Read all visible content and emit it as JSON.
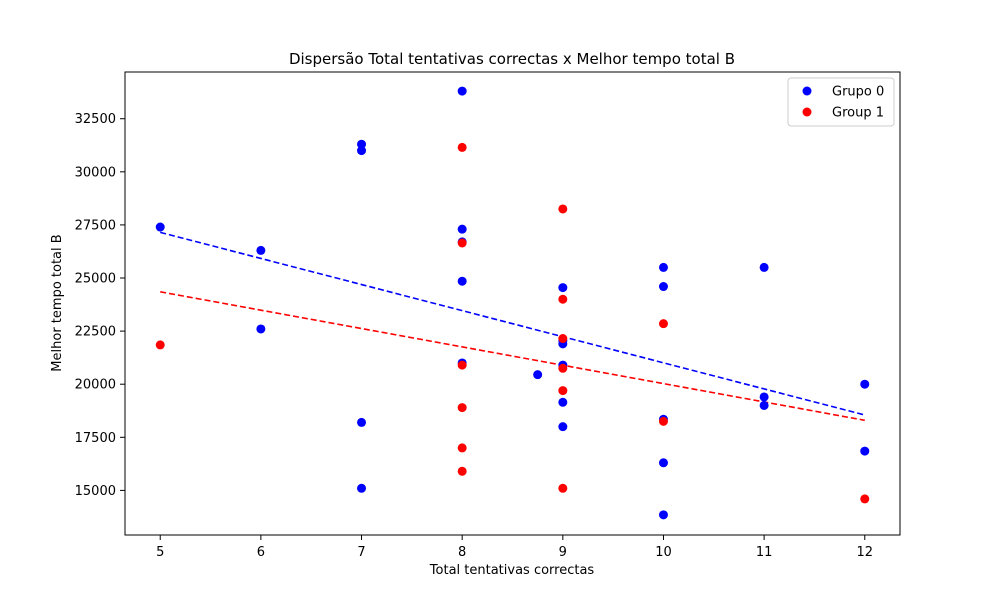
{
  "chart_data": {
    "type": "scatter",
    "title": "Dispersão Total tentativas correctas x Melhor tempo total B",
    "xlabel": "Total tentativas correctas",
    "ylabel": "Melhor tempo total B",
    "xlim": [
      4.65,
      12.35
    ],
    "ylim": [
      12900,
      34700
    ],
    "xticks": [
      5,
      6,
      7,
      8,
      9,
      10,
      11,
      12
    ],
    "yticks": [
      15000,
      17500,
      20000,
      22500,
      25000,
      27500,
      30000,
      32500
    ],
    "grid": false,
    "legend_position": "top-right",
    "series": [
      {
        "name": "Grupo 0",
        "color": "#0000ff",
        "points": [
          [
            5,
            27400
          ],
          [
            6,
            26300
          ],
          [
            6,
            22600
          ],
          [
            7,
            31300
          ],
          [
            7,
            31000
          ],
          [
            7,
            18200
          ],
          [
            7,
            15100
          ],
          [
            8,
            33800
          ],
          [
            8,
            27300
          ],
          [
            8,
            26700
          ],
          [
            8,
            24850
          ],
          [
            8,
            21000
          ],
          [
            8.75,
            20450
          ],
          [
            9,
            24550
          ],
          [
            9,
            22050
          ],
          [
            9,
            21900
          ],
          [
            9,
            20900
          ],
          [
            9,
            19150
          ],
          [
            9,
            18000
          ],
          [
            10,
            25500
          ],
          [
            10,
            24600
          ],
          [
            10,
            18350
          ],
          [
            10,
            16300
          ],
          [
            10,
            13850
          ],
          [
            11,
            25500
          ],
          [
            11,
            19400
          ],
          [
            11,
            19000
          ],
          [
            12,
            20000
          ],
          [
            12,
            16850
          ]
        ],
        "trend": [
          [
            5,
            27150
          ],
          [
            12,
            18550
          ]
        ]
      },
      {
        "name": "Group 1",
        "color": "#ff0000",
        "points": [
          [
            5,
            21850
          ],
          [
            8,
            31150
          ],
          [
            8,
            26650
          ],
          [
            8,
            20900
          ],
          [
            8,
            18900
          ],
          [
            8,
            17000
          ],
          [
            8,
            15900
          ],
          [
            9,
            28250
          ],
          [
            9,
            24000
          ],
          [
            9,
            22150
          ],
          [
            9,
            20750
          ],
          [
            9,
            19700
          ],
          [
            9,
            15100
          ],
          [
            10,
            22850
          ],
          [
            10,
            18250
          ],
          [
            12,
            14600
          ]
        ],
        "trend": [
          [
            5,
            24350
          ],
          [
            12,
            18300
          ]
        ]
      }
    ]
  }
}
